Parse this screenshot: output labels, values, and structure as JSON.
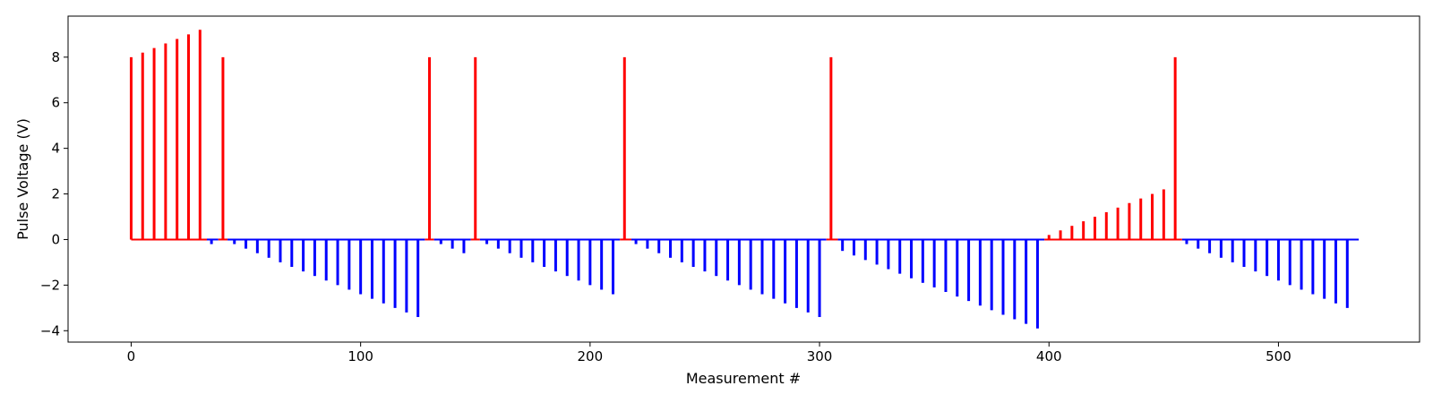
{
  "chart_data": {
    "type": "bar",
    "title": "",
    "xlabel": "Measurement #",
    "ylabel": "Pulse Voltage (V)",
    "xlim": [
      -27.5,
      561.5
    ],
    "ylim": [
      -4.5,
      9.8
    ],
    "xticks": [
      0,
      100,
      200,
      300,
      400,
      500
    ],
    "yticks": [
      -4,
      -2,
      0,
      2,
      4,
      6,
      8
    ],
    "xtick_labels": [
      "0",
      "100",
      "200",
      "300",
      "400",
      "500"
    ],
    "ytick_labels": [
      "−4",
      "−2",
      "0",
      "2",
      "4",
      "6",
      "8"
    ],
    "grid": false,
    "legend": "none",
    "x_range": [
      0,
      535
    ],
    "series": [
      {
        "color": "#ff0000",
        "points": [
          [
            0,
            8.0
          ],
          [
            5,
            8.2
          ],
          [
            10,
            8.4
          ],
          [
            15,
            8.6
          ],
          [
            20,
            8.8
          ],
          [
            25,
            9.0
          ],
          [
            30,
            9.2
          ],
          [
            40,
            8.0
          ],
          [
            130,
            8.0
          ],
          [
            150,
            8.0
          ],
          [
            215,
            8.0
          ],
          [
            305,
            8.0
          ],
          [
            400,
            0.2
          ],
          [
            405,
            0.4
          ],
          [
            410,
            0.6
          ],
          [
            415,
            0.8
          ],
          [
            420,
            1.0
          ],
          [
            425,
            1.2
          ],
          [
            430,
            1.4
          ],
          [
            435,
            1.6
          ],
          [
            440,
            1.8
          ],
          [
            445,
            2.0
          ],
          [
            450,
            2.2
          ],
          [
            455,
            8.0
          ]
        ]
      },
      {
        "color": "#0000ff",
        "points": [
          [
            35,
            -0.2
          ],
          [
            45,
            -0.2
          ],
          [
            50,
            -0.4
          ],
          [
            55,
            -0.6
          ],
          [
            60,
            -0.8
          ],
          [
            65,
            -1.0
          ],
          [
            70,
            -1.2
          ],
          [
            75,
            -1.4
          ],
          [
            80,
            -1.6
          ],
          [
            85,
            -1.8
          ],
          [
            90,
            -2.0
          ],
          [
            95,
            -2.2
          ],
          [
            100,
            -2.4
          ],
          [
            105,
            -2.6
          ],
          [
            110,
            -2.8
          ],
          [
            115,
            -3.0
          ],
          [
            120,
            -3.2
          ],
          [
            125,
            -3.4
          ],
          [
            135,
            -0.2
          ],
          [
            140,
            -0.4
          ],
          [
            145,
            -0.6
          ],
          [
            155,
            -0.2
          ],
          [
            160,
            -0.4
          ],
          [
            165,
            -0.6
          ],
          [
            170,
            -0.8
          ],
          [
            175,
            -1.0
          ],
          [
            180,
            -1.2
          ],
          [
            185,
            -1.4
          ],
          [
            190,
            -1.6
          ],
          [
            195,
            -1.8
          ],
          [
            200,
            -2.0
          ],
          [
            205,
            -2.2
          ],
          [
            210,
            -2.4
          ],
          [
            220,
            -0.2
          ],
          [
            225,
            -0.4
          ],
          [
            230,
            -0.6
          ],
          [
            235,
            -0.8
          ],
          [
            240,
            -1.0
          ],
          [
            245,
            -1.2
          ],
          [
            250,
            -1.4
          ],
          [
            255,
            -1.6
          ],
          [
            260,
            -1.8
          ],
          [
            265,
            -2.0
          ],
          [
            270,
            -2.2
          ],
          [
            275,
            -2.4
          ],
          [
            280,
            -2.6
          ],
          [
            285,
            -2.8
          ],
          [
            290,
            -3.0
          ],
          [
            295,
            -3.2
          ],
          [
            300,
            -3.4
          ],
          [
            310,
            -0.5
          ],
          [
            315,
            -0.7
          ],
          [
            320,
            -0.9
          ],
          [
            325,
            -1.1
          ],
          [
            330,
            -1.3
          ],
          [
            335,
            -1.5
          ],
          [
            340,
            -1.7
          ],
          [
            345,
            -1.9
          ],
          [
            350,
            -2.1
          ],
          [
            355,
            -2.3
          ],
          [
            360,
            -2.5
          ],
          [
            365,
            -2.7
          ],
          [
            370,
            -2.9
          ],
          [
            375,
            -3.1
          ],
          [
            380,
            -3.3
          ],
          [
            385,
            -3.5
          ],
          [
            390,
            -3.7
          ],
          [
            395,
            -3.9
          ],
          [
            460,
            -0.2
          ],
          [
            465,
            -0.4
          ],
          [
            470,
            -0.6
          ],
          [
            475,
            -0.8
          ],
          [
            480,
            -1.0
          ],
          [
            485,
            -1.2
          ],
          [
            490,
            -1.4
          ],
          [
            495,
            -1.6
          ],
          [
            500,
            -1.8
          ],
          [
            505,
            -2.0
          ],
          [
            510,
            -2.2
          ],
          [
            515,
            -2.4
          ],
          [
            520,
            -2.6
          ],
          [
            525,
            -2.8
          ],
          [
            530,
            -3.0
          ]
        ]
      }
    ],
    "baseline_segments": [
      {
        "color": "#ff0000",
        "x": [
          0,
          33
        ]
      },
      {
        "color": "#0000ff",
        "x": [
          33,
          38
        ]
      },
      {
        "color": "#ff0000",
        "x": [
          38,
          42
        ]
      },
      {
        "color": "#0000ff",
        "x": [
          42,
          128
        ]
      },
      {
        "color": "#ff0000",
        "x": [
          128,
          132
        ]
      },
      {
        "color": "#0000ff",
        "x": [
          132,
          148
        ]
      },
      {
        "color": "#ff0000",
        "x": [
          148,
          152
        ]
      },
      {
        "color": "#0000ff",
        "x": [
          152,
          213
        ]
      },
      {
        "color": "#ff0000",
        "x": [
          213,
          218
        ]
      },
      {
        "color": "#0000ff",
        "x": [
          218,
          303
        ]
      },
      {
        "color": "#ff0000",
        "x": [
          303,
          308
        ]
      },
      {
        "color": "#0000ff",
        "x": [
          308,
          398
        ]
      },
      {
        "color": "#ff0000",
        "x": [
          398,
          458
        ]
      },
      {
        "color": "#0000ff",
        "x": [
          458,
          535
        ]
      }
    ]
  }
}
